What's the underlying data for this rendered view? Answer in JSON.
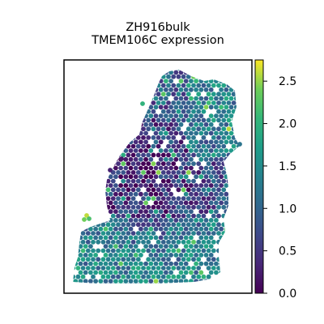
{
  "chart_data": {
    "type": "scatter",
    "title": "ZH916bulk",
    "subtitle": "TMEM106C expression",
    "xlabel": "",
    "ylabel": "",
    "colormap": "viridis",
    "color_range": [
      0.0,
      2.75
    ],
    "colorbar_ticks": [
      "0.0",
      "0.5",
      "1.0",
      "1.5",
      "2.0",
      "2.5"
    ],
    "colorbar_tick_values": [
      0.0,
      0.5,
      1.0,
      1.5,
      2.0,
      2.5
    ],
    "grid": false,
    "legend": "none",
    "points_summary": "hexagonal spatial spots; mostly 0.0-1.5, sparse highs up to ~2.7; low values concentrated in upper-central region",
    "highlight_points": [
      {
        "region": "upper-left edge",
        "value": 2.7
      },
      {
        "region": "left edge",
        "value": 2.6
      },
      {
        "region": "lower-left",
        "value": 2.2
      },
      {
        "region": "top",
        "value": 2.0
      }
    ]
  }
}
